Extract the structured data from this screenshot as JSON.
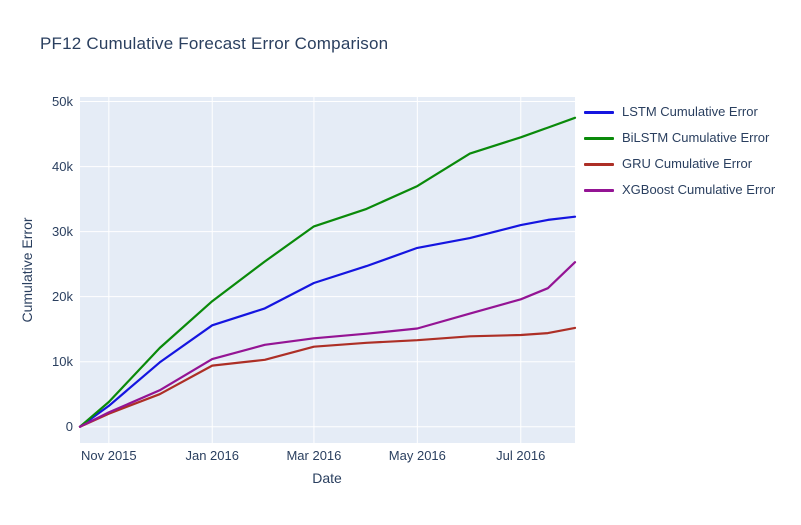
{
  "page": {
    "background": "#ffffff"
  },
  "chart_data": {
    "type": "line",
    "title": "PF12 Cumulative Forecast Error Comparison",
    "xlabel": "Date",
    "ylabel": "Cumulative Error",
    "grid": true,
    "legend_position": "right",
    "x_dates": [
      "2015-10-15",
      "2015-11-01",
      "2015-12-01",
      "2016-01-01",
      "2016-02-01",
      "2016-03-01",
      "2016-04-01",
      "2016-05-01",
      "2016-06-01",
      "2016-07-01",
      "2016-07-17",
      "2016-08-02"
    ],
    "x_days": [
      0,
      17,
      47,
      78,
      109,
      138,
      169,
      199,
      230,
      260,
      276,
      292
    ],
    "series": [
      {
        "name": "LSTM Cumulative Error",
        "color": "#1515e0",
        "values": [
          0,
          3200,
          9900,
          15600,
          18200,
          22100,
          24700,
          27500,
          29000,
          31000,
          31800,
          32300
        ]
      },
      {
        "name": "BiLSTM Cumulative Error",
        "color": "#0a8a0a",
        "values": [
          0,
          3800,
          12100,
          19300,
          25400,
          30800,
          33500,
          37000,
          42000,
          44500,
          46000,
          47500
        ]
      },
      {
        "name": "GRU Cumulative Error",
        "color": "#ad2f26",
        "values": [
          0,
          2000,
          5000,
          9400,
          10300,
          12300,
          12900,
          13300,
          13900,
          14100,
          14400,
          15200
        ]
      },
      {
        "name": "XGBoost Cumulative Error",
        "color": "#941494",
        "values": [
          0,
          2200,
          5600,
          10400,
          12600,
          13600,
          14300,
          15100,
          17400,
          19600,
          21300,
          25300
        ]
      }
    ],
    "xticks": {
      "days": [
        17,
        78,
        138,
        199,
        260
      ],
      "labels": [
        "Nov 2015",
        "Jan 2016",
        "Mar 2016",
        "May 2016",
        "Jul 2016"
      ]
    },
    "yticks": {
      "values": [
        0,
        10000,
        20000,
        30000,
        40000,
        50000
      ],
      "labels": [
        "0",
        "10k",
        "20k",
        "30k",
        "40k",
        "50k"
      ]
    },
    "xlim_days": [
      0,
      292
    ],
    "ylim": [
      -2500,
      50700
    ],
    "colors": {
      "plot_bg": "#e5ecf6",
      "grid": "#ffffff",
      "text": "#2a3f5f"
    }
  }
}
